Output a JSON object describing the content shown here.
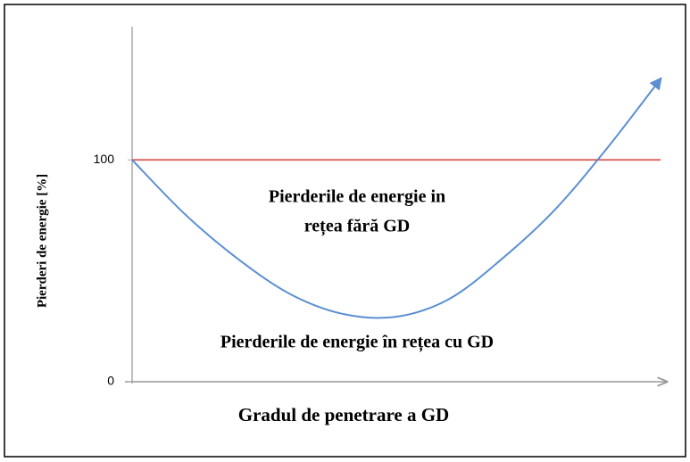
{
  "chart_data": {
    "type": "line",
    "ylabel": "Pierderi de energie [%]",
    "xlabel": "Gradul de penetrare a GD",
    "categories": [
      null,
      null,
      null,
      null,
      null,
      null,
      null,
      null,
      null,
      null,
      null
    ],
    "series": [
      {
        "color": "#5b8fd1",
        "values": [
          100,
          75.5,
          55.4,
          39.4,
          30.5,
          29.3,
          37.3,
          55.4,
          77.5,
          105.6,
          136.5
        ]
      },
      {
        "color": "#d9534f",
        "values": [
          100,
          100,
          100,
          100,
          100,
          100,
          100,
          100,
          100,
          100,
          100
        ]
      }
    ],
    "ylim": [
      0,
      160
    ],
    "yticks": [
      0,
      100
    ],
    "annotations": [
      "Pierderile de energie in",
      "rețea fără GD",
      "Pierderile de energie în rețea cu GD"
    ]
  }
}
